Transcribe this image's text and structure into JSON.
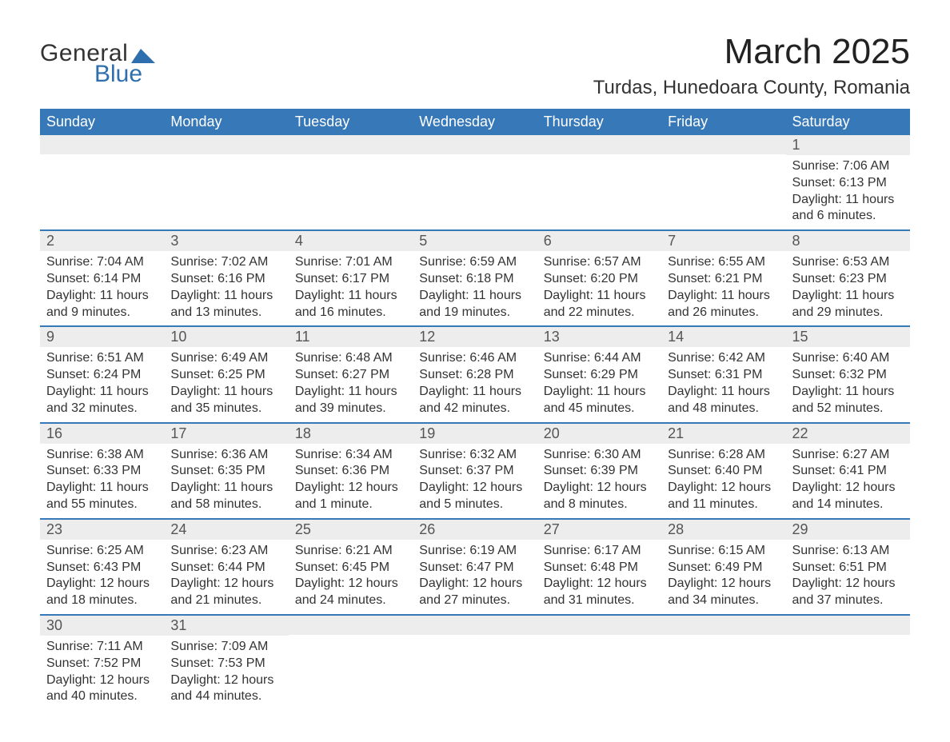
{
  "brand": {
    "top": "General",
    "bottom": "Blue",
    "icon_color": "#2f6fae"
  },
  "title": "March 2025",
  "location": "Turdas, Hunedoara County, Romania",
  "columns": [
    "Sunday",
    "Monday",
    "Tuesday",
    "Wednesday",
    "Thursday",
    "Friday",
    "Saturday"
  ],
  "colors": {
    "header_bg": "#3678b8",
    "daynum_bg": "#ededed",
    "row_border": "#3678b8",
    "text": "#333333"
  },
  "weeks": [
    [
      {
        "n": "",
        "sr": "",
        "ss": "",
        "dl": ""
      },
      {
        "n": "",
        "sr": "",
        "ss": "",
        "dl": ""
      },
      {
        "n": "",
        "sr": "",
        "ss": "",
        "dl": ""
      },
      {
        "n": "",
        "sr": "",
        "ss": "",
        "dl": ""
      },
      {
        "n": "",
        "sr": "",
        "ss": "",
        "dl": ""
      },
      {
        "n": "",
        "sr": "",
        "ss": "",
        "dl": ""
      },
      {
        "n": "1",
        "sr": "Sunrise: 7:06 AM",
        "ss": "Sunset: 6:13 PM",
        "dl": "Daylight: 11 hours and 6 minutes."
      }
    ],
    [
      {
        "n": "2",
        "sr": "Sunrise: 7:04 AM",
        "ss": "Sunset: 6:14 PM",
        "dl": "Daylight: 11 hours and 9 minutes."
      },
      {
        "n": "3",
        "sr": "Sunrise: 7:02 AM",
        "ss": "Sunset: 6:16 PM",
        "dl": "Daylight: 11 hours and 13 minutes."
      },
      {
        "n": "4",
        "sr": "Sunrise: 7:01 AM",
        "ss": "Sunset: 6:17 PM",
        "dl": "Daylight: 11 hours and 16 minutes."
      },
      {
        "n": "5",
        "sr": "Sunrise: 6:59 AM",
        "ss": "Sunset: 6:18 PM",
        "dl": "Daylight: 11 hours and 19 minutes."
      },
      {
        "n": "6",
        "sr": "Sunrise: 6:57 AM",
        "ss": "Sunset: 6:20 PM",
        "dl": "Daylight: 11 hours and 22 minutes."
      },
      {
        "n": "7",
        "sr": "Sunrise: 6:55 AM",
        "ss": "Sunset: 6:21 PM",
        "dl": "Daylight: 11 hours and 26 minutes."
      },
      {
        "n": "8",
        "sr": "Sunrise: 6:53 AM",
        "ss": "Sunset: 6:23 PM",
        "dl": "Daylight: 11 hours and 29 minutes."
      }
    ],
    [
      {
        "n": "9",
        "sr": "Sunrise: 6:51 AM",
        "ss": "Sunset: 6:24 PM",
        "dl": "Daylight: 11 hours and 32 minutes."
      },
      {
        "n": "10",
        "sr": "Sunrise: 6:49 AM",
        "ss": "Sunset: 6:25 PM",
        "dl": "Daylight: 11 hours and 35 minutes."
      },
      {
        "n": "11",
        "sr": "Sunrise: 6:48 AM",
        "ss": "Sunset: 6:27 PM",
        "dl": "Daylight: 11 hours and 39 minutes."
      },
      {
        "n": "12",
        "sr": "Sunrise: 6:46 AM",
        "ss": "Sunset: 6:28 PM",
        "dl": "Daylight: 11 hours and 42 minutes."
      },
      {
        "n": "13",
        "sr": "Sunrise: 6:44 AM",
        "ss": "Sunset: 6:29 PM",
        "dl": "Daylight: 11 hours and 45 minutes."
      },
      {
        "n": "14",
        "sr": "Sunrise: 6:42 AM",
        "ss": "Sunset: 6:31 PM",
        "dl": "Daylight: 11 hours and 48 minutes."
      },
      {
        "n": "15",
        "sr": "Sunrise: 6:40 AM",
        "ss": "Sunset: 6:32 PM",
        "dl": "Daylight: 11 hours and 52 minutes."
      }
    ],
    [
      {
        "n": "16",
        "sr": "Sunrise: 6:38 AM",
        "ss": "Sunset: 6:33 PM",
        "dl": "Daylight: 11 hours and 55 minutes."
      },
      {
        "n": "17",
        "sr": "Sunrise: 6:36 AM",
        "ss": "Sunset: 6:35 PM",
        "dl": "Daylight: 11 hours and 58 minutes."
      },
      {
        "n": "18",
        "sr": "Sunrise: 6:34 AM",
        "ss": "Sunset: 6:36 PM",
        "dl": "Daylight: 12 hours and 1 minute."
      },
      {
        "n": "19",
        "sr": "Sunrise: 6:32 AM",
        "ss": "Sunset: 6:37 PM",
        "dl": "Daylight: 12 hours and 5 minutes."
      },
      {
        "n": "20",
        "sr": "Sunrise: 6:30 AM",
        "ss": "Sunset: 6:39 PM",
        "dl": "Daylight: 12 hours and 8 minutes."
      },
      {
        "n": "21",
        "sr": "Sunrise: 6:28 AM",
        "ss": "Sunset: 6:40 PM",
        "dl": "Daylight: 12 hours and 11 minutes."
      },
      {
        "n": "22",
        "sr": "Sunrise: 6:27 AM",
        "ss": "Sunset: 6:41 PM",
        "dl": "Daylight: 12 hours and 14 minutes."
      }
    ],
    [
      {
        "n": "23",
        "sr": "Sunrise: 6:25 AM",
        "ss": "Sunset: 6:43 PM",
        "dl": "Daylight: 12 hours and 18 minutes."
      },
      {
        "n": "24",
        "sr": "Sunrise: 6:23 AM",
        "ss": "Sunset: 6:44 PM",
        "dl": "Daylight: 12 hours and 21 minutes."
      },
      {
        "n": "25",
        "sr": "Sunrise: 6:21 AM",
        "ss": "Sunset: 6:45 PM",
        "dl": "Daylight: 12 hours and 24 minutes."
      },
      {
        "n": "26",
        "sr": "Sunrise: 6:19 AM",
        "ss": "Sunset: 6:47 PM",
        "dl": "Daylight: 12 hours and 27 minutes."
      },
      {
        "n": "27",
        "sr": "Sunrise: 6:17 AM",
        "ss": "Sunset: 6:48 PM",
        "dl": "Daylight: 12 hours and 31 minutes."
      },
      {
        "n": "28",
        "sr": "Sunrise: 6:15 AM",
        "ss": "Sunset: 6:49 PM",
        "dl": "Daylight: 12 hours and 34 minutes."
      },
      {
        "n": "29",
        "sr": "Sunrise: 6:13 AM",
        "ss": "Sunset: 6:51 PM",
        "dl": "Daylight: 12 hours and 37 minutes."
      }
    ],
    [
      {
        "n": "30",
        "sr": "Sunrise: 7:11 AM",
        "ss": "Sunset: 7:52 PM",
        "dl": "Daylight: 12 hours and 40 minutes."
      },
      {
        "n": "31",
        "sr": "Sunrise: 7:09 AM",
        "ss": "Sunset: 7:53 PM",
        "dl": "Daylight: 12 hours and 44 minutes."
      },
      {
        "n": "",
        "sr": "",
        "ss": "",
        "dl": ""
      },
      {
        "n": "",
        "sr": "",
        "ss": "",
        "dl": ""
      },
      {
        "n": "",
        "sr": "",
        "ss": "",
        "dl": ""
      },
      {
        "n": "",
        "sr": "",
        "ss": "",
        "dl": ""
      },
      {
        "n": "",
        "sr": "",
        "ss": "",
        "dl": ""
      }
    ]
  ]
}
